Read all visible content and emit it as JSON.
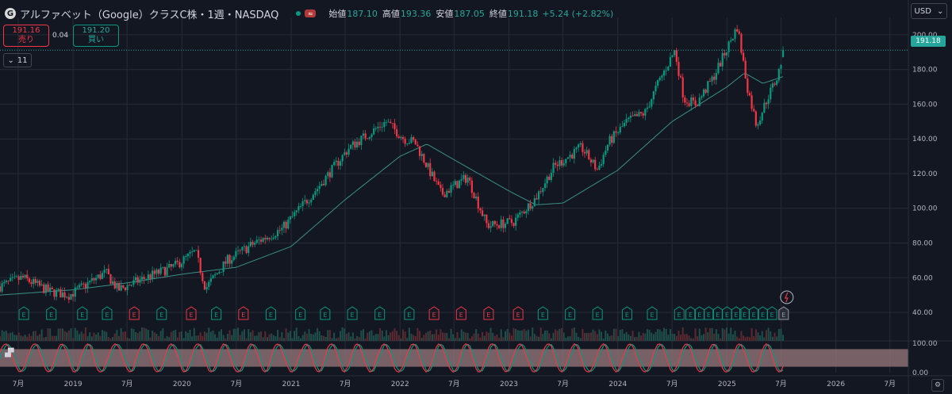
{
  "header": {
    "logo_letter": "G",
    "title": "アルファベット（Google）クラスC株・1週・NASDAQ",
    "wave_icon": "≈",
    "open_label": "始値",
    "open": "187.10",
    "high_label": "高値",
    "high": "193.36",
    "low_label": "安値",
    "low": "187.05",
    "close_label": "終値",
    "close": "191.18",
    "change": "+5.24 (+2.82%)"
  },
  "trade": {
    "sell_price": "191.16",
    "sell_label": "売り",
    "spread": "0.04",
    "buy_price": "191.20",
    "buy_label": "買い",
    "collapse_label": "11"
  },
  "currency": "USD",
  "last_price_label": "191.18",
  "colors": {
    "up": "#089981",
    "down": "#f23645",
    "ma": "#3a8f86",
    "bg": "#131722",
    "grid": "#262b36"
  },
  "earnings_marker": "E",
  "chart_data": {
    "type": "candlestick",
    "interval": "1W",
    "xlim": [
      "2018-05-01",
      "2026-09-01"
    ],
    "ylim": [
      35,
      210
    ],
    "y_ticks": [
      40,
      60,
      80,
      100,
      120,
      140,
      160,
      180,
      200
    ],
    "y_tick_labels": [
      "40.00",
      "60.00",
      "80.00",
      "100.00",
      "120.00",
      "140.00",
      "160.00",
      "180.00",
      "200.00"
    ],
    "x_ticks": [
      {
        "label": "7月",
        "date": "2018-07-01"
      },
      {
        "label": "2019",
        "date": "2019-01-01"
      },
      {
        "label": "7月",
        "date": "2019-07-01"
      },
      {
        "label": "2020",
        "date": "2020-01-01"
      },
      {
        "label": "7月",
        "date": "2020-07-01"
      },
      {
        "label": "2021",
        "date": "2021-01-01"
      },
      {
        "label": "7月",
        "date": "2021-07-01"
      },
      {
        "label": "2022",
        "date": "2022-01-01"
      },
      {
        "label": "7月",
        "date": "2022-07-01"
      },
      {
        "label": "2023",
        "date": "2023-01-01"
      },
      {
        "label": "7月",
        "date": "2023-07-01"
      },
      {
        "label": "2024",
        "date": "2024-01-01"
      },
      {
        "label": "7月",
        "date": "2024-07-01"
      },
      {
        "label": "2025",
        "date": "2025-01-01"
      },
      {
        "label": "7月",
        "date": "2025-07-01"
      },
      {
        "label": "2026",
        "date": "2026-01-01"
      },
      {
        "label": "7月",
        "date": "2026-07-01"
      }
    ],
    "price_path": [
      [
        "2018-05-01",
        55
      ],
      [
        "2018-07-15",
        60
      ],
      [
        "2018-10-15",
        52
      ],
      [
        "2018-12-20",
        50
      ],
      [
        "2019-04-20",
        63
      ],
      [
        "2019-06-01",
        53
      ],
      [
        "2019-09-01",
        60
      ],
      [
        "2019-12-01",
        66
      ],
      [
        "2020-02-15",
        75
      ],
      [
        "2020-03-20",
        54
      ],
      [
        "2020-06-01",
        70
      ],
      [
        "2020-09-01",
        80
      ],
      [
        "2020-12-01",
        88
      ],
      [
        "2021-04-01",
        112
      ],
      [
        "2021-07-15",
        135
      ],
      [
        "2021-11-15",
        150
      ],
      [
        "2022-01-15",
        140
      ],
      [
        "2022-02-20",
        138
      ],
      [
        "2022-05-20",
        108
      ],
      [
        "2022-08-15",
        118
      ],
      [
        "2022-10-20",
        90
      ],
      [
        "2023-01-15",
        92
      ],
      [
        "2023-04-01",
        106
      ],
      [
        "2023-06-01",
        124
      ],
      [
        "2023-09-01",
        135
      ],
      [
        "2023-10-25",
        122
      ],
      [
        "2023-12-01",
        138
      ],
      [
        "2024-02-01",
        150
      ],
      [
        "2024-04-01",
        155
      ],
      [
        "2024-05-15",
        172
      ],
      [
        "2024-07-10",
        191
      ],
      [
        "2024-08-10",
        163
      ],
      [
        "2024-09-20",
        160
      ],
      [
        "2024-11-15",
        175
      ],
      [
        "2025-01-01",
        192
      ],
      [
        "2025-02-05",
        205
      ],
      [
        "2025-03-10",
        170
      ],
      [
        "2025-04-10",
        148
      ],
      [
        "2025-05-20",
        165
      ],
      [
        "2025-06-20",
        176
      ],
      [
        "2025-07-10",
        191
      ]
    ],
    "ma_path": [
      [
        "2018-05-01",
        50
      ],
      [
        "2019-01-01",
        53
      ],
      [
        "2019-07-01",
        57
      ],
      [
        "2020-01-01",
        62
      ],
      [
        "2020-07-01",
        66
      ],
      [
        "2021-01-01",
        78
      ],
      [
        "2021-07-01",
        105
      ],
      [
        "2022-01-01",
        130
      ],
      [
        "2022-04-01",
        137
      ],
      [
        "2022-07-01",
        128
      ],
      [
        "2023-01-01",
        110
      ],
      [
        "2023-04-01",
        102
      ],
      [
        "2023-07-01",
        103
      ],
      [
        "2024-01-01",
        122
      ],
      [
        "2024-07-01",
        150
      ],
      [
        "2025-01-01",
        170
      ],
      [
        "2025-03-01",
        178
      ],
      [
        "2025-05-01",
        172
      ],
      [
        "2025-07-10",
        176
      ]
    ],
    "last": {
      "date": "2025-07-10",
      "open": 187.1,
      "high": 193.36,
      "low": 187.05,
      "close": 191.18
    },
    "earnings_dates": [
      {
        "date": "2018-07-20",
        "c": "up"
      },
      {
        "date": "2018-10-20",
        "c": "up"
      },
      {
        "date": "2019-02-01",
        "c": "up"
      },
      {
        "date": "2019-04-25",
        "c": "up"
      },
      {
        "date": "2019-07-25",
        "c": "down"
      },
      {
        "date": "2019-10-25",
        "c": "up"
      },
      {
        "date": "2020-02-01",
        "c": "down"
      },
      {
        "date": "2020-04-25",
        "c": "up"
      },
      {
        "date": "2020-07-25",
        "c": "down"
      },
      {
        "date": "2020-10-25",
        "c": "up"
      },
      {
        "date": "2021-02-01",
        "c": "up"
      },
      {
        "date": "2021-04-25",
        "c": "up"
      },
      {
        "date": "2021-07-25",
        "c": "up"
      },
      {
        "date": "2021-10-25",
        "c": "up"
      },
      {
        "date": "2022-02-01",
        "c": "up"
      },
      {
        "date": "2022-04-25",
        "c": "down"
      },
      {
        "date": "2022-07-25",
        "c": "down"
      },
      {
        "date": "2022-10-25",
        "c": "down"
      },
      {
        "date": "2023-02-01",
        "c": "down"
      },
      {
        "date": "2023-04-25",
        "c": "up"
      },
      {
        "date": "2023-07-25",
        "c": "up"
      },
      {
        "date": "2023-10-25",
        "c": "up"
      },
      {
        "date": "2024-02-01",
        "c": "up"
      },
      {
        "date": "2024-04-25",
        "c": "up"
      },
      {
        "date": "2024-07-25",
        "c": "up"
      },
      {
        "date": "2024-09-01",
        "c": "up"
      },
      {
        "date": "2024-10-01",
        "c": "up"
      },
      {
        "date": "2024-11-01",
        "c": "up"
      },
      {
        "date": "2024-12-01",
        "c": "up"
      },
      {
        "date": "2025-01-01",
        "c": "up"
      },
      {
        "date": "2025-02-01",
        "c": "up"
      },
      {
        "date": "2025-03-01",
        "c": "up"
      },
      {
        "date": "2025-04-01",
        "c": "up"
      },
      {
        "date": "2025-05-01",
        "c": "up"
      },
      {
        "date": "2025-06-01",
        "c": "up"
      },
      {
        "date": "2025-07-10",
        "c": "grey"
      }
    ],
    "oscillator": {
      "y_tick_labels": [
        "100.00",
        "0.00"
      ],
      "ylim": [
        0,
        100
      ],
      "band": [
        20,
        80
      ]
    }
  }
}
